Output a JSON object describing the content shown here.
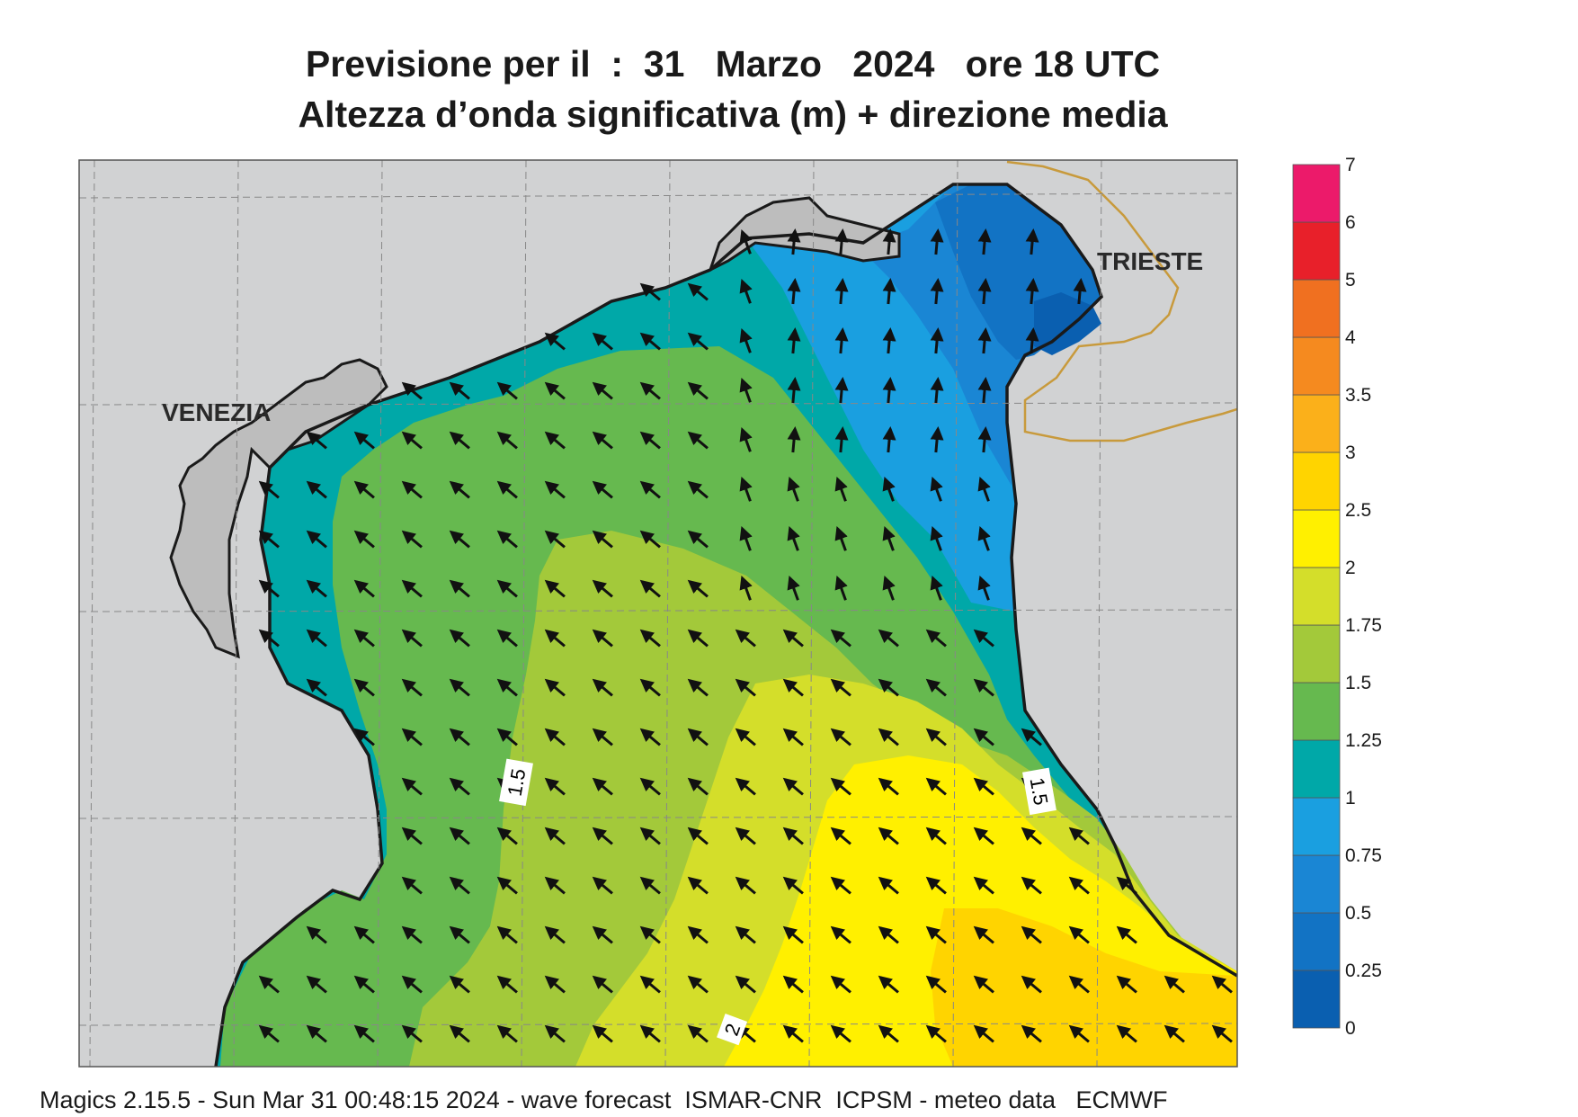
{
  "title_line1": "Previsione per il  :  31   Marzo   2024   ore 18 UTC",
  "title_line2": "Altezza d’onda significativa (m) + direzione media",
  "footer": "Magics 2.15.5 - Sun Mar 31 00:48:15 2024 - wave forecast  ISMAR-CNR  ICPSM - meteo data   ECMWF",
  "cities": [
    {
      "name": "VENEZIA"
    },
    {
      "name": "TRIESTE"
    }
  ],
  "contour_labels": [
    "1.5",
    "1.5",
    "2"
  ],
  "colorbar": {
    "levels": [
      "0",
      "0.25",
      "0.5",
      "0.75",
      "1",
      "1.25",
      "1.5",
      "1.75",
      "2",
      "2.5",
      "3",
      "3.5",
      "4",
      "5",
      "6",
      "7"
    ],
    "colors": [
      "#0a5fb0",
      "#1273c4",
      "#1a86d4",
      "#1a9fe0",
      "#00a8a8",
      "#66b94f",
      "#a3c93a",
      "#d4de2a",
      "#fff000",
      "#ffd400",
      "#fbb01a",
      "#f58a1f",
      "#f07020",
      "#e8202a",
      "#ec1a6a"
    ]
  },
  "colors": {
    "land": "#d1d2d3",
    "lagoon": "#bdbdbd",
    "coast": "#1a1a1a",
    "border": "#c89a3c",
    "grid": "#888888"
  },
  "wave_direction": "towards NW (arrows point north-west, south-east swell)"
}
